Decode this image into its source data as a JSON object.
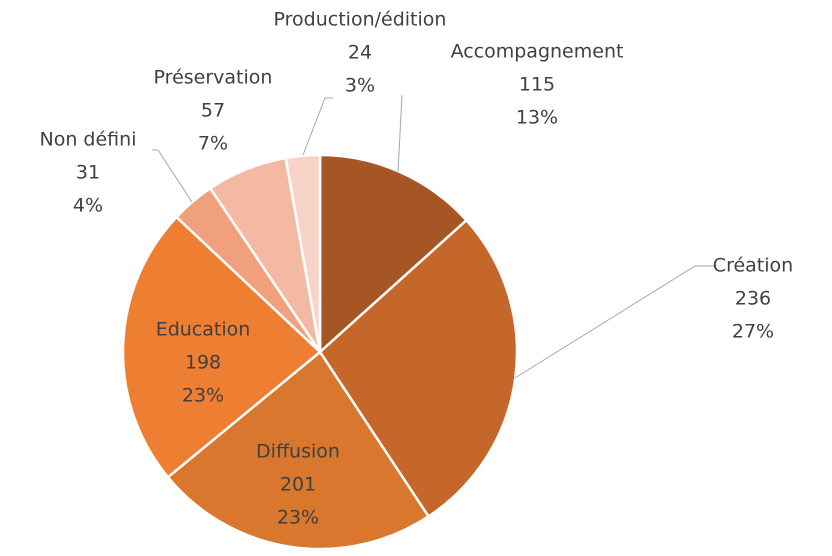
{
  "chart_data": {
    "type": "pie",
    "categories": [
      "Accompagnement",
      "Création",
      "Diffusion",
      "Education",
      "Non défini",
      "Préservation",
      "Production/édition"
    ],
    "values": [
      115,
      236,
      201,
      198,
      31,
      57,
      24
    ],
    "percent_labels": [
      "13%",
      "27%",
      "23%",
      "23%",
      "4%",
      "7%",
      "3%"
    ],
    "colors": [
      "#a65524",
      "#c5662a",
      "#d9772f",
      "#ed7e32",
      "#f0a07c",
      "#f4b9a3",
      "#f8d4c8"
    ]
  }
}
